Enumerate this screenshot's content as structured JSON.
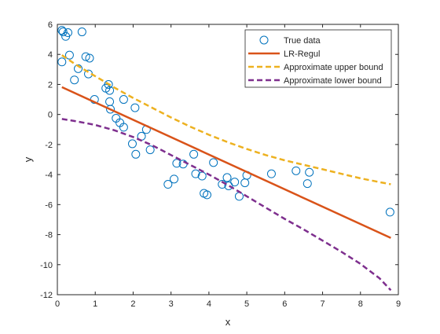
{
  "chart_data": {
    "type": "scatter",
    "title": "",
    "xlabel": "x",
    "ylabel": "y",
    "xlim": [
      0,
      9
    ],
    "ylim": [
      -12,
      6
    ],
    "xticks": [
      0,
      1,
      2,
      3,
      4,
      5,
      6,
      7,
      8,
      9
    ],
    "yticks": [
      -12,
      -10,
      -8,
      -6,
      -4,
      -2,
      0,
      2,
      4,
      6
    ],
    "grid": false,
    "legend_position": "top-right",
    "series": [
      {
        "name": "True data",
        "kind": "markers",
        "color": "#0072bd",
        "points": [
          [
            0.12,
            5.6
          ],
          [
            0.15,
            5.5
          ],
          [
            0.22,
            5.2
          ],
          [
            0.28,
            5.45
          ],
          [
            0.65,
            5.5
          ],
          [
            0.12,
            3.5
          ],
          [
            0.32,
            3.95
          ],
          [
            0.45,
            2.3
          ],
          [
            0.55,
            3.05
          ],
          [
            0.75,
            3.85
          ],
          [
            0.85,
            3.75
          ],
          [
            0.82,
            2.7
          ],
          [
            0.98,
            1.0
          ],
          [
            1.28,
            1.75
          ],
          [
            1.35,
            2.0
          ],
          [
            1.38,
            1.6
          ],
          [
            1.38,
            0.85
          ],
          [
            1.4,
            0.35
          ],
          [
            1.55,
            -0.25
          ],
          [
            1.65,
            -0.55
          ],
          [
            1.75,
            1.0
          ],
          [
            1.75,
            -0.85
          ],
          [
            1.98,
            -1.95
          ],
          [
            2.05,
            0.45
          ],
          [
            2.07,
            -2.65
          ],
          [
            2.22,
            -1.45
          ],
          [
            2.35,
            -1.0
          ],
          [
            2.45,
            -2.35
          ],
          [
            2.92,
            -4.65
          ],
          [
            3.08,
            -4.3
          ],
          [
            3.15,
            -3.25
          ],
          [
            3.32,
            -3.3
          ],
          [
            3.6,
            -2.65
          ],
          [
            3.65,
            -3.95
          ],
          [
            3.82,
            -4.1
          ],
          [
            3.87,
            -5.25
          ],
          [
            3.95,
            -5.35
          ],
          [
            4.12,
            -3.2
          ],
          [
            4.35,
            -4.65
          ],
          [
            4.48,
            -4.2
          ],
          [
            4.52,
            -4.75
          ],
          [
            4.68,
            -4.5
          ],
          [
            4.8,
            -5.45
          ],
          [
            4.95,
            -4.55
          ],
          [
            5.0,
            -4.05
          ],
          [
            5.65,
            -3.95
          ],
          [
            6.3,
            -3.75
          ],
          [
            6.6,
            -4.6
          ],
          [
            6.65,
            -3.85
          ],
          [
            8.78,
            -6.5
          ]
        ]
      },
      {
        "name": "LR-Regul",
        "kind": "line",
        "color": "#d95319",
        "dash": "solid",
        "points": [
          [
            0.12,
            1.82
          ],
          [
            8.8,
            -8.22
          ]
        ]
      },
      {
        "name": "Approximate upper bound",
        "kind": "line",
        "color": "#edb120",
        "dash": "dashed",
        "points": [
          [
            0.12,
            3.95
          ],
          [
            0.5,
            3.3
          ],
          [
            1.0,
            2.55
          ],
          [
            1.5,
            1.8
          ],
          [
            2.0,
            1.1
          ],
          [
            2.5,
            0.45
          ],
          [
            3.0,
            -0.2
          ],
          [
            3.5,
            -0.8
          ],
          [
            4.0,
            -1.35
          ],
          [
            4.5,
            -1.85
          ],
          [
            5.0,
            -2.3
          ],
          [
            5.5,
            -2.7
          ],
          [
            6.0,
            -3.05
          ],
          [
            6.5,
            -3.35
          ],
          [
            7.0,
            -3.65
          ],
          [
            7.5,
            -3.95
          ],
          [
            8.0,
            -4.25
          ],
          [
            8.5,
            -4.5
          ],
          [
            8.8,
            -4.65
          ]
        ]
      },
      {
        "name": "Approximate lower bound",
        "kind": "line",
        "color": "#7e2f8e",
        "dash": "dashed",
        "points": [
          [
            0.12,
            -0.3
          ],
          [
            0.5,
            -0.45
          ],
          [
            1.0,
            -0.7
          ],
          [
            1.5,
            -1.05
          ],
          [
            2.0,
            -1.5
          ],
          [
            2.5,
            -2.05
          ],
          [
            3.0,
            -2.7
          ],
          [
            3.5,
            -3.35
          ],
          [
            4.0,
            -4.0
          ],
          [
            4.5,
            -4.7
          ],
          [
            5.0,
            -5.45
          ],
          [
            5.5,
            -6.2
          ],
          [
            6.0,
            -6.95
          ],
          [
            6.5,
            -7.65
          ],
          [
            7.0,
            -8.4
          ],
          [
            7.5,
            -9.15
          ],
          [
            8.0,
            -9.95
          ],
          [
            8.5,
            -10.9
          ],
          [
            8.8,
            -11.7
          ]
        ]
      }
    ]
  }
}
